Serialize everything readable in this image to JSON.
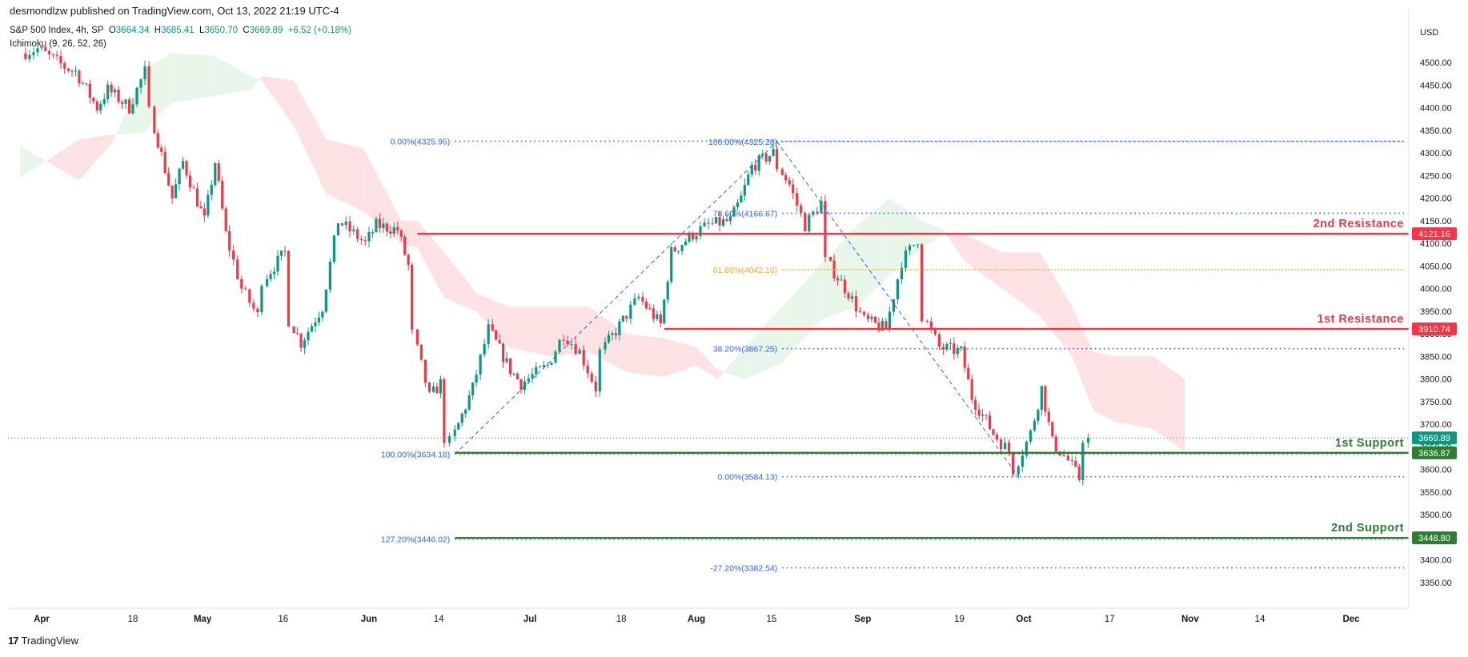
{
  "header": {
    "publisher": "desmondlzw published on TradingView.com, Oct 13, 2022 21:19 UTC-4",
    "symbol": "S&P 500 Index, 4h, SP",
    "o_label": "O",
    "o_value": "3664.34",
    "h_label": "H",
    "h_value": "3685.41",
    "l_label": "L",
    "l_value": "3650.70",
    "c_label": "C",
    "c_value": "3669.89",
    "change": "+6.52 (+0.18%)",
    "indicator": "Ichimoku (9, 26, 52, 26)"
  },
  "footer": {
    "brand": "TradingView",
    "logo": "17"
  },
  "colors": {
    "up": "#089981",
    "down": "#f23645",
    "resistance": "#f23645",
    "support": "#2e7d32",
    "fib": "#2962ff",
    "fib618": "#f9a825",
    "cloud_bull": "#e8f5e9",
    "cloud_bear": "#fde2e4"
  },
  "chart_data": {
    "type": "candlestick",
    "title": "",
    "currency": "USD",
    "ylim": [
      3300,
      4550
    ],
    "y_ticks": [
      3350,
      3400,
      3450,
      3500,
      3550,
      3600,
      3650,
      3700,
      3750,
      3800,
      3850,
      3900,
      3950,
      4000,
      4050,
      4100,
      4150,
      4200,
      4250,
      4300,
      4350,
      4400,
      4450,
      4500
    ],
    "x_axis": {
      "labels": [
        {
          "label": "Apr",
          "date": "2022-04-01"
        },
        {
          "label": "18",
          "date": "2022-04-18"
        },
        {
          "label": "May",
          "date": "2022-05-01"
        },
        {
          "label": "16",
          "date": "2022-05-16"
        },
        {
          "label": "Jun",
          "date": "2022-06-01"
        },
        {
          "label": "14",
          "date": "2022-06-14"
        },
        {
          "label": "Jul",
          "date": "2022-07-01"
        },
        {
          "label": "18",
          "date": "2022-07-18"
        },
        {
          "label": "Aug",
          "date": "2022-08-01"
        },
        {
          "label": "15",
          "date": "2022-08-15"
        },
        {
          "label": "Sep",
          "date": "2022-09-01"
        },
        {
          "label": "19",
          "date": "2022-09-19"
        },
        {
          "label": "Oct",
          "date": "2022-10-01"
        },
        {
          "label": "17",
          "date": "2022-10-17"
        },
        {
          "label": "Nov",
          "date": "2022-11-01"
        },
        {
          "label": "14",
          "date": "2022-11-14"
        },
        {
          "label": "Dec",
          "date": "2022-12-01"
        }
      ]
    },
    "last_price": {
      "value": 3669.89,
      "label": "3669.89"
    },
    "levels": [
      {
        "name": "2nd Resistance",
        "value": 4121.16,
        "label": "4121.16",
        "kind": "resistance",
        "start_date": "2022-06-10"
      },
      {
        "name": "1st Resistance",
        "value": 3910.74,
        "label": "3910.74",
        "kind": "resistance",
        "start_date": "2022-07-26"
      },
      {
        "name": "1st Support",
        "value": 3636.87,
        "label": "3636.87",
        "kind": "support",
        "start_date": "2022-06-17"
      },
      {
        "name": "2nd Support",
        "value": 3448.8,
        "label": "3448.80",
        "kind": "support",
        "start_date": "2022-06-17"
      }
    ],
    "fib_levels": [
      {
        "label": "0.00%(4325.95)",
        "value": 4325.95,
        "start_date": "2022-06-17",
        "color": "fib"
      },
      {
        "label": "100.00%(4325.28)",
        "value": 4325.28,
        "start_date": "2022-08-17",
        "color": "fib"
      },
      {
        "label": "78.60%(4166.67)",
        "value": 4166.67,
        "start_date": "2022-08-17",
        "color": "fib"
      },
      {
        "label": "61.80%(4042.16)",
        "value": 4042.16,
        "start_date": "2022-08-17",
        "color": "fib618"
      },
      {
        "label": "38.20%(3867.25)",
        "value": 3867.25,
        "start_date": "2022-08-17",
        "color": "fib"
      },
      {
        "label": "100.00%(3634.18)",
        "value": 3634.18,
        "start_date": "2022-06-17",
        "color": "fib"
      },
      {
        "label": "0.00%(3584.13)",
        "value": 3584.13,
        "start_date": "2022-08-17",
        "color": "fib"
      },
      {
        "label": "127.20%(3446.02)",
        "value": 3446.02,
        "start_date": "2022-06-17",
        "color": "fib"
      },
      {
        "label": "-27.20%(3382.54)",
        "value": 3382.54,
        "start_date": "2022-08-17",
        "color": "fib"
      }
    ],
    "trend_lines": [
      {
        "from": {
          "date": "2022-06-17",
          "value": 3634
        },
        "to": {
          "date": "2022-08-16",
          "value": 4325
        }
      },
      {
        "from": {
          "date": "2022-08-16",
          "value": 4325
        },
        "to": {
          "date": "2022-09-30",
          "value": 3584
        }
      }
    ],
    "ichimoku_cloud": [
      {
        "date": "2022-03-28",
        "span_a": 4315,
        "span_b": 4245
      },
      {
        "date": "2022-04-08",
        "span_a": 4240,
        "span_b": 4330
      },
      {
        "date": "2022-04-14",
        "span_a": 4320,
        "span_b": 4340
      },
      {
        "date": "2022-04-20",
        "span_a": 4480,
        "span_b": 4345
      },
      {
        "date": "2022-04-25",
        "span_a": 4520,
        "span_b": 4410
      },
      {
        "date": "2022-05-03",
        "span_a": 4515,
        "span_b": 4425
      },
      {
        "date": "2022-05-10",
        "span_a": 4470,
        "span_b": 4440
      },
      {
        "date": "2022-05-12",
        "span_a": 4460,
        "span_b": 4470
      },
      {
        "date": "2022-05-18",
        "span_a": 4360,
        "span_b": 4460
      },
      {
        "date": "2022-05-24",
        "span_a": 4210,
        "span_b": 4330
      },
      {
        "date": "2022-05-31",
        "span_a": 4170,
        "span_b": 4310
      },
      {
        "date": "2022-06-07",
        "span_a": 4100,
        "span_b": 4150
      },
      {
        "date": "2022-06-10",
        "span_a": 4090,
        "span_b": 4150
      },
      {
        "date": "2022-06-15",
        "span_a": 3980,
        "span_b": 4080
      },
      {
        "date": "2022-06-21",
        "span_a": 3950,
        "span_b": 3990
      },
      {
        "date": "2022-06-27",
        "span_a": 3870,
        "span_b": 3960
      },
      {
        "date": "2022-07-05",
        "span_a": 3850,
        "span_b": 3960
      },
      {
        "date": "2022-07-12",
        "span_a": 3860,
        "span_b": 3960
      },
      {
        "date": "2022-07-19",
        "span_a": 3815,
        "span_b": 3900
      },
      {
        "date": "2022-07-26",
        "span_a": 3805,
        "span_b": 3890
      },
      {
        "date": "2022-08-01",
        "span_a": 3830,
        "span_b": 3870
      },
      {
        "date": "2022-08-05",
        "span_a": 3800,
        "span_b": 3820
      },
      {
        "date": "2022-08-10",
        "span_a": 3870,
        "span_b": 3800
      },
      {
        "date": "2022-08-17",
        "span_a": 3960,
        "span_b": 3835
      },
      {
        "date": "2022-08-24",
        "span_a": 4050,
        "span_b": 3930
      },
      {
        "date": "2022-08-31",
        "span_a": 4140,
        "span_b": 3960
      },
      {
        "date": "2022-09-06",
        "span_a": 4200,
        "span_b": 4030
      },
      {
        "date": "2022-09-12",
        "span_a": 4150,
        "span_b": 4090
      },
      {
        "date": "2022-09-16",
        "span_a": 4130,
        "span_b": 4120
      },
      {
        "date": "2022-09-20",
        "span_a": 4060,
        "span_b": 4120
      },
      {
        "date": "2022-09-27",
        "span_a": 4000,
        "span_b": 4080
      },
      {
        "date": "2022-10-04",
        "span_a": 3940,
        "span_b": 4080
      },
      {
        "date": "2022-10-10",
        "span_a": 3850,
        "span_b": 3960
      },
      {
        "date": "2022-10-14",
        "span_a": 3730,
        "span_b": 3860
      },
      {
        "date": "2022-10-18",
        "span_a": 3705,
        "span_b": 3850
      },
      {
        "date": "2022-10-25",
        "span_a": 3690,
        "span_b": 3850
      },
      {
        "date": "2022-10-31",
        "span_a": 3640,
        "span_b": 3800
      }
    ],
    "close_path": [
      {
        "date": "2022-03-29",
        "value": 4520
      },
      {
        "date": "2022-04-01",
        "value": 4530
      },
      {
        "date": "2022-04-06",
        "value": 4490
      },
      {
        "date": "2022-04-08",
        "value": 4480
      },
      {
        "date": "2022-04-12",
        "value": 4400
      },
      {
        "date": "2022-04-14",
        "value": 4440
      },
      {
        "date": "2022-04-18",
        "value": 4400
      },
      {
        "date": "2022-04-21",
        "value": 4480
      },
      {
        "date": "2022-04-22",
        "value": 4390
      },
      {
        "date": "2022-04-26",
        "value": 4200
      },
      {
        "date": "2022-04-28",
        "value": 4280
      },
      {
        "date": "2022-05-02",
        "value": 4150
      },
      {
        "date": "2022-05-04",
        "value": 4280
      },
      {
        "date": "2022-05-06",
        "value": 4120
      },
      {
        "date": "2022-05-09",
        "value": 4000
      },
      {
        "date": "2022-05-12",
        "value": 3940
      },
      {
        "date": "2022-05-13",
        "value": 4020
      },
      {
        "date": "2022-05-17",
        "value": 4080
      },
      {
        "date": "2022-05-18",
        "value": 3930
      },
      {
        "date": "2022-05-20",
        "value": 3880
      },
      {
        "date": "2022-05-24",
        "value": 3960
      },
      {
        "date": "2022-05-27",
        "value": 4150
      },
      {
        "date": "2022-06-01",
        "value": 4100
      },
      {
        "date": "2022-06-03",
        "value": 4140
      },
      {
        "date": "2022-06-07",
        "value": 4130
      },
      {
        "date": "2022-06-09",
        "value": 4050
      },
      {
        "date": "2022-06-10",
        "value": 3900
      },
      {
        "date": "2022-06-13",
        "value": 3760
      },
      {
        "date": "2022-06-15",
        "value": 3790
      },
      {
        "date": "2022-06-16",
        "value": 3670
      },
      {
        "date": "2022-06-17",
        "value": 3660
      },
      {
        "date": "2022-06-21",
        "value": 3780
      },
      {
        "date": "2022-06-24",
        "value": 3910
      },
      {
        "date": "2022-06-28",
        "value": 3820
      },
      {
        "date": "2022-06-30",
        "value": 3790
      },
      {
        "date": "2022-07-05",
        "value": 3830
      },
      {
        "date": "2022-07-08",
        "value": 3900
      },
      {
        "date": "2022-07-11",
        "value": 3860
      },
      {
        "date": "2022-07-14",
        "value": 3780
      },
      {
        "date": "2022-07-15",
        "value": 3860
      },
      {
        "date": "2022-07-19",
        "value": 3930
      },
      {
        "date": "2022-07-22",
        "value": 3980
      },
      {
        "date": "2022-07-26",
        "value": 3920
      },
      {
        "date": "2022-07-28",
        "value": 4080
      },
      {
        "date": "2022-08-01",
        "value": 4120
      },
      {
        "date": "2022-08-04",
        "value": 4140
      },
      {
        "date": "2022-08-08",
        "value": 4150
      },
      {
        "date": "2022-08-10",
        "value": 4200
      },
      {
        "date": "2022-08-12",
        "value": 4270
      },
      {
        "date": "2022-08-16",
        "value": 4300
      },
      {
        "date": "2022-08-17",
        "value": 4270
      },
      {
        "date": "2022-08-19",
        "value": 4230
      },
      {
        "date": "2022-08-22",
        "value": 4140
      },
      {
        "date": "2022-08-25",
        "value": 4190
      },
      {
        "date": "2022-08-26",
        "value": 4060
      },
      {
        "date": "2022-08-30",
        "value": 3990
      },
      {
        "date": "2022-09-02",
        "value": 3930
      },
      {
        "date": "2022-09-06",
        "value": 3910
      },
      {
        "date": "2022-09-09",
        "value": 4060
      },
      {
        "date": "2022-09-12",
        "value": 4110
      },
      {
        "date": "2022-09-13",
        "value": 3940
      },
      {
        "date": "2022-09-16",
        "value": 3870
      },
      {
        "date": "2022-09-20",
        "value": 3860
      },
      {
        "date": "2022-09-22",
        "value": 3760
      },
      {
        "date": "2022-09-26",
        "value": 3680
      },
      {
        "date": "2022-09-29",
        "value": 3640
      },
      {
        "date": "2022-09-30",
        "value": 3600
      },
      {
        "date": "2022-10-03",
        "value": 3680
      },
      {
        "date": "2022-10-05",
        "value": 3780
      },
      {
        "date": "2022-10-07",
        "value": 3660
      },
      {
        "date": "2022-10-10",
        "value": 3620
      },
      {
        "date": "2022-10-12",
        "value": 3580
      },
      {
        "date": "2022-10-13",
        "value": 3669.89
      }
    ]
  }
}
